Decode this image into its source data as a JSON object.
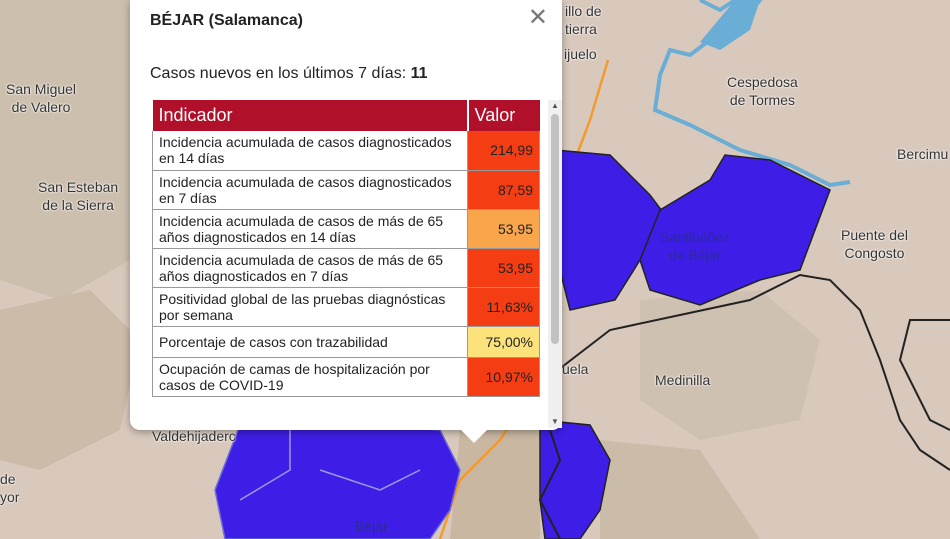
{
  "map": {
    "places": [
      {
        "name": "San Miguel\nde Valero"
      },
      {
        "name": "San Esteban\nde la Sierra"
      },
      {
        "name": "Cespedosa\nde Tormes"
      },
      {
        "name": "Bercimu"
      },
      {
        "name": "Puente del\nCongosto"
      },
      {
        "name": "Santibáñez\nde Béjar"
      },
      {
        "name": "Medinilla"
      },
      {
        "name": "uela"
      },
      {
        "name": "Valdehijaderc"
      },
      {
        "name": "Béjar"
      },
      {
        "name": "ijuelo"
      },
      {
        "name": "illo de\ntierra"
      },
      {
        "name": "de\nyor"
      }
    ],
    "colors": {
      "background": "#d9c9bd",
      "hills": "#cbbba9",
      "region": "#3e1ee6",
      "river": "#6aaed6",
      "road": "#f29a2e"
    }
  },
  "popup": {
    "title": "BÉJAR (Salamanca)",
    "new_cases_label": "Casos nuevos en los últimos 7 días:",
    "new_cases_value": "11",
    "close_icon": "close-icon",
    "table": {
      "headers": [
        "Indicador",
        "Valor"
      ],
      "rows": [
        {
          "indicator": "Incidencia acumulada de casos diagnosticados en 14 días",
          "value": "214,99",
          "color": "#f53d13"
        },
        {
          "indicator": "Incidencia acumulada de casos diagnosticados en 7 días",
          "value": "87,59",
          "color": "#f53d13"
        },
        {
          "indicator": "Incidencia acumulada de casos de más de 65 años diagnosticados en 14 días",
          "value": "53,95",
          "color": "#f8a54b"
        },
        {
          "indicator": "Incidencia acumulada de casos de más de 65 años diagnosticados en 7 días",
          "value": "53,95",
          "color": "#f53d13"
        },
        {
          "indicator": "Positividad global de las pruebas diagnósticas por semana",
          "value": "11,63%",
          "color": "#f53d13"
        },
        {
          "indicator": "Porcentaje de casos con trazabilidad",
          "value": "75,00%",
          "color": "#fbe27a"
        },
        {
          "indicator": "Ocupación de camas de hospitalización por casos de COVID-19",
          "value": "10,97%",
          "color": "#f53d13"
        }
      ]
    }
  }
}
